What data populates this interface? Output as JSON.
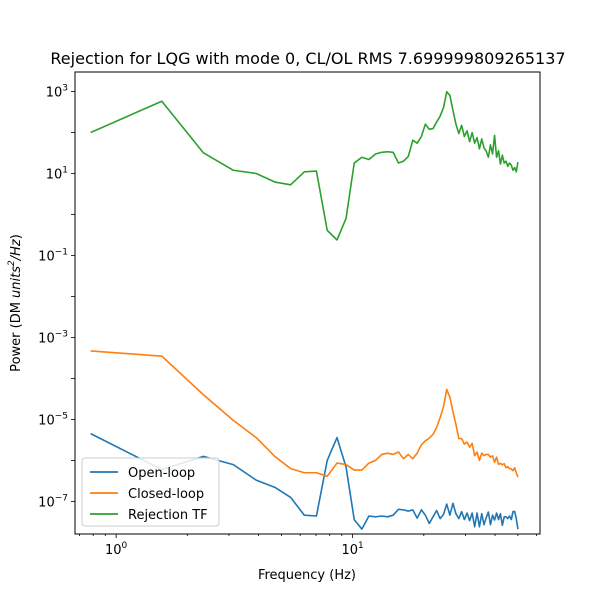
{
  "chart_data": {
    "type": "line",
    "title": "Rejection for LQG with mode 0, CL/OL RMS 7.699999809265137",
    "xlabel": "Frequency (Hz)",
    "ylabel_prefix": "Power (DM ",
    "ylabel_units": "units",
    "ylabel_sup": "2",
    "ylabel_per": "/Hz",
    "ylabel_suffix": ")",
    "xscale": "log",
    "yscale": "log",
    "xlim": [
      0.67,
      62
    ],
    "ylim": [
      1.6e-08,
      3000
    ],
    "x_ticks": [
      {
        "value": 1,
        "base": "10",
        "exp": "0"
      },
      {
        "value": 10,
        "base": "10",
        "exp": "1"
      }
    ],
    "y_ticks": [
      {
        "value": 1e-07,
        "base": "10",
        "exp": "−7"
      },
      {
        "value": 1e-05,
        "base": "10",
        "exp": "−5"
      },
      {
        "value": 0.001,
        "base": "10",
        "exp": "−3"
      },
      {
        "value": 0.1,
        "base": "10",
        "exp": "−1"
      },
      {
        "value": 10,
        "base": "10",
        "exp": "1"
      },
      {
        "value": 1000,
        "base": "10",
        "exp": "3"
      }
    ],
    "legend_position": "lower-left",
    "series": [
      {
        "name": "Open-loop",
        "color": "#1f77b4",
        "points": [
          [
            0.78,
            4.5e-06
          ],
          [
            1.56,
            6e-07
          ],
          [
            2.34,
            1.25e-06
          ],
          [
            3.13,
            7.9e-07
          ],
          [
            3.91,
            3.3e-07
          ],
          [
            4.69,
            2.2e-07
          ],
          [
            5.47,
            1.25e-07
          ],
          [
            6.25,
            4.6e-08
          ],
          [
            7.03,
            4.4e-08
          ],
          [
            7.81,
            1e-06
          ],
          [
            8.59,
            3.6e-06
          ],
          [
            9.38,
            6.9e-07
          ],
          [
            10.16,
            3.6e-08
          ],
          [
            10.94,
            2.1e-08
          ],
          [
            11.72,
            4.4e-08
          ],
          [
            12.5,
            4.2e-08
          ],
          [
            13.28,
            4.4e-08
          ],
          [
            14.06,
            4.2e-08
          ],
          [
            14.84,
            4.6e-08
          ],
          [
            15.63,
            6.4e-08
          ],
          [
            16.41,
            6.2e-08
          ],
          [
            17.19,
            5.8e-08
          ],
          [
            17.97,
            6.2e-08
          ],
          [
            18.75,
            3.9e-08
          ],
          [
            19.53,
            6.2e-08
          ],
          [
            20.31,
            4.6e-08
          ],
          [
            21.09,
            2.9e-08
          ],
          [
            21.88,
            4.2e-08
          ],
          [
            22.66,
            6e-08
          ],
          [
            23.44,
            3.8e-08
          ],
          [
            24.22,
            4.8e-08
          ],
          [
            25.0,
            8.6e-08
          ],
          [
            25.78,
            4.6e-08
          ],
          [
            26.56,
            9e-08
          ],
          [
            27.34,
            5e-08
          ],
          [
            28.13,
            3.8e-08
          ],
          [
            28.91,
            5.6e-08
          ],
          [
            29.69,
            3.6e-08
          ],
          [
            30.47,
            5.2e-08
          ],
          [
            31.25,
            3.4e-08
          ],
          [
            32.03,
            5.2e-08
          ],
          [
            32.81,
            2.4e-08
          ],
          [
            33.59,
            5.2e-08
          ],
          [
            34.38,
            2.4e-08
          ],
          [
            35.16,
            5e-08
          ],
          [
            35.94,
            2.7e-08
          ],
          [
            36.72,
            4e-08
          ],
          [
            37.5,
            5.5e-08
          ],
          [
            38.28,
            2.7e-08
          ],
          [
            39.06,
            4.6e-08
          ],
          [
            39.84,
            3.5e-08
          ],
          [
            40.63,
            5.2e-08
          ],
          [
            41.41,
            3.6e-08
          ],
          [
            42.19,
            5e-08
          ],
          [
            42.97,
            2.6e-08
          ],
          [
            43.75,
            4.2e-08
          ],
          [
            44.53,
            4.2e-08
          ],
          [
            45.31,
            3.8e-08
          ],
          [
            46.09,
            4.4e-08
          ],
          [
            46.88,
            3.6e-08
          ],
          [
            47.66,
            5.6e-08
          ],
          [
            48.44,
            5.7e-08
          ],
          [
            49.22,
            3.8e-08
          ],
          [
            50.0,
            2.1e-08
          ]
        ]
      },
      {
        "name": "Closed-loop",
        "color": "#ff7f0e",
        "points": [
          [
            0.78,
            0.00047
          ],
          [
            1.56,
            0.00035
          ],
          [
            2.34,
            4e-05
          ],
          [
            3.13,
            9.5e-06
          ],
          [
            3.91,
            3.6e-06
          ],
          [
            4.69,
            1.25e-06
          ],
          [
            5.47,
            6.3e-07
          ],
          [
            6.25,
            5e-07
          ],
          [
            7.03,
            5e-07
          ],
          [
            7.81,
            4.1e-07
          ],
          [
            8.59,
            8.6e-07
          ],
          [
            9.38,
            7.9e-07
          ],
          [
            10.16,
            5.8e-07
          ],
          [
            10.94,
            5.8e-07
          ],
          [
            11.72,
            8.6e-07
          ],
          [
            12.5,
            1e-06
          ],
          [
            13.28,
            1.4e-06
          ],
          [
            14.06,
            1.5e-06
          ],
          [
            14.84,
            1.4e-06
          ],
          [
            15.63,
            1.6e-06
          ],
          [
            16.41,
            1.1e-06
          ],
          [
            17.19,
            1.4e-06
          ],
          [
            17.97,
            1.1e-06
          ],
          [
            18.75,
            1.5e-06
          ],
          [
            19.53,
            2.4e-06
          ],
          [
            20.31,
            3e-06
          ],
          [
            21.09,
            3.5e-06
          ],
          [
            21.88,
            4.3e-06
          ],
          [
            22.66,
            6.4e-06
          ],
          [
            23.44,
            1.1e-05
          ],
          [
            24.22,
            2e-05
          ],
          [
            25.0,
            5.4e-05
          ],
          [
            25.78,
            3.5e-05
          ],
          [
            26.56,
            1.55e-05
          ],
          [
            27.34,
            7.6e-06
          ],
          [
            28.13,
            3.4e-06
          ],
          [
            28.91,
            3.4e-06
          ],
          [
            29.69,
            2.5e-06
          ],
          [
            30.47,
            2.8e-06
          ],
          [
            31.25,
            2.1e-06
          ],
          [
            32.03,
            2.6e-06
          ],
          [
            32.81,
            1.3e-06
          ],
          [
            33.59,
            1.6e-06
          ],
          [
            34.38,
            1e-06
          ],
          [
            35.16,
            1.5e-06
          ],
          [
            35.94,
            1.3e-06
          ],
          [
            36.72,
            1.4e-06
          ],
          [
            37.5,
            1.4e-06
          ],
          [
            38.28,
            1.2e-06
          ],
          [
            39.06,
            1.3e-06
          ],
          [
            39.84,
            9e-07
          ],
          [
            40.63,
            1.2e-06
          ],
          [
            41.41,
            8e-07
          ],
          [
            42.19,
            8.5e-07
          ],
          [
            42.97,
            7.8e-07
          ],
          [
            43.75,
            8.3e-07
          ],
          [
            44.53,
            6.6e-07
          ],
          [
            45.31,
            7e-07
          ],
          [
            46.09,
            6.3e-07
          ],
          [
            46.88,
            6.2e-07
          ],
          [
            47.66,
            5.6e-07
          ],
          [
            48.44,
            6.6e-07
          ],
          [
            49.22,
            5e-07
          ],
          [
            50.0,
            3.9e-07
          ]
        ]
      },
      {
        "name": "Rejection TF",
        "color": "#2ca02c",
        "points": [
          [
            0.78,
            100
          ],
          [
            1.56,
            580
          ],
          [
            2.34,
            32
          ],
          [
            3.13,
            12
          ],
          [
            3.91,
            10
          ],
          [
            4.69,
            6.2
          ],
          [
            5.47,
            5.3
          ],
          [
            6.25,
            11
          ],
          [
            7.03,
            11.5
          ],
          [
            7.81,
            0.41
          ],
          [
            8.59,
            0.24
          ],
          [
            9.38,
            0.8
          ],
          [
            10.16,
            18
          ],
          [
            10.94,
            25
          ],
          [
            11.72,
            22
          ],
          [
            12.5,
            30
          ],
          [
            13.28,
            33
          ],
          [
            14.06,
            34
          ],
          [
            14.84,
            33
          ],
          [
            15.63,
            18
          ],
          [
            16.41,
            20
          ],
          [
            17.19,
            26
          ],
          [
            17.97,
            65
          ],
          [
            18.75,
            55
          ],
          [
            19.53,
            80
          ],
          [
            20.31,
            160
          ],
          [
            21.09,
            120
          ],
          [
            21.88,
            125
          ],
          [
            22.66,
            180
          ],
          [
            23.44,
            250
          ],
          [
            24.22,
            400
          ],
          [
            25.0,
            990
          ],
          [
            25.78,
            800
          ],
          [
            26.56,
            350
          ],
          [
            27.34,
            160
          ],
          [
            28.13,
            95
          ],
          [
            28.91,
            150
          ],
          [
            29.69,
            80
          ],
          [
            30.47,
            110
          ],
          [
            31.25,
            60
          ],
          [
            32.03,
            100
          ],
          [
            32.81,
            55
          ],
          [
            33.59,
            75
          ],
          [
            34.38,
            40
          ],
          [
            35.16,
            70
          ],
          [
            35.94,
            42
          ],
          [
            36.72,
            35
          ],
          [
            37.5,
            25
          ],
          [
            38.28,
            50
          ],
          [
            39.06,
            30
          ],
          [
            39.84,
            85
          ],
          [
            40.63,
            25
          ],
          [
            41.41,
            36
          ],
          [
            42.19,
            17
          ],
          [
            42.97,
            28
          ],
          [
            43.75,
            18
          ],
          [
            44.53,
            20
          ],
          [
            45.31,
            15
          ],
          [
            46.09,
            18
          ],
          [
            46.88,
            16
          ],
          [
            47.66,
            12
          ],
          [
            48.44,
            14
          ],
          [
            49.22,
            11
          ],
          [
            50.0,
            19
          ]
        ]
      }
    ]
  }
}
